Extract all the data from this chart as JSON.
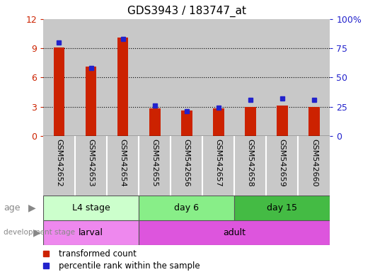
{
  "title": "GDS3943 / 183747_at",
  "samples": [
    "GSM542652",
    "GSM542653",
    "GSM542654",
    "GSM542655",
    "GSM542656",
    "GSM542657",
    "GSM542658",
    "GSM542659",
    "GSM542660"
  ],
  "transformed_counts": [
    9.1,
    7.1,
    10.1,
    2.85,
    2.6,
    2.8,
    3.0,
    3.1,
    3.0
  ],
  "percentile_ranks": [
    80,
    58,
    83,
    26,
    21,
    24,
    31,
    32,
    31
  ],
  "ylim_left": [
    0,
    12
  ],
  "ylim_right": [
    0,
    100
  ],
  "yticks_left": [
    0,
    3,
    6,
    9,
    12
  ],
  "yticks_right": [
    0,
    25,
    50,
    75,
    100
  ],
  "yticklabels_right": [
    "0",
    "25",
    "50",
    "75",
    "100%"
  ],
  "bar_color": "#cc2200",
  "marker_color": "#2222cc",
  "age_groups": [
    {
      "label": "L4 stage",
      "start": 0,
      "end": 3,
      "color": "#ccffcc"
    },
    {
      "label": "day 6",
      "start": 3,
      "end": 6,
      "color": "#88ee88"
    },
    {
      "label": "day 15",
      "start": 6,
      "end": 9,
      "color": "#44bb44"
    }
  ],
  "dev_groups": [
    {
      "label": "larval",
      "start": 0,
      "end": 3,
      "color": "#ee88ee"
    },
    {
      "label": "adult",
      "start": 3,
      "end": 9,
      "color": "#dd55dd"
    }
  ],
  "bar_width": 0.35,
  "xlim": [
    -0.5,
    8.5
  ],
  "tick_label_fontsize": 8,
  "axis_label_color_left": "#cc2200",
  "axis_label_color_right": "#2222cc",
  "sample_bg_color": "#c8c8c8",
  "plot_bg_color": "#ffffff",
  "grid_linestyle": ":",
  "grid_linewidth": 0.8,
  "grid_color": "#000000"
}
